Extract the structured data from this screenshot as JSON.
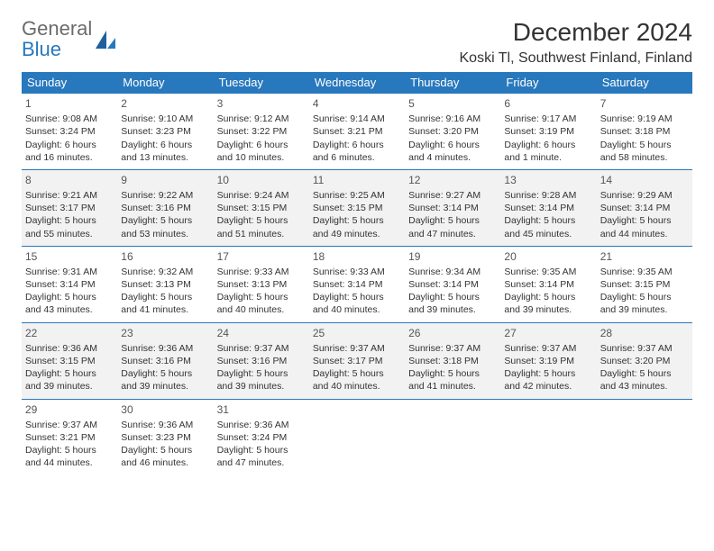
{
  "logo": {
    "line1": "General",
    "line2": "Blue"
  },
  "title": "December 2024",
  "location": "Koski Tl, Southwest Finland, Finland",
  "colors": {
    "header_bg": "#2878bd",
    "header_text": "#ffffff",
    "alt_row_bg": "#f2f2f2",
    "text": "#333333",
    "rule": "#2878bd"
  },
  "dayHeaders": [
    "Sunday",
    "Monday",
    "Tuesday",
    "Wednesday",
    "Thursday",
    "Friday",
    "Saturday"
  ],
  "weeks": [
    {
      "alt": false,
      "days": [
        {
          "num": "1",
          "sunrise": "Sunrise: 9:08 AM",
          "sunset": "Sunset: 3:24 PM",
          "daylight": "Daylight: 6 hours and 16 minutes."
        },
        {
          "num": "2",
          "sunrise": "Sunrise: 9:10 AM",
          "sunset": "Sunset: 3:23 PM",
          "daylight": "Daylight: 6 hours and 13 minutes."
        },
        {
          "num": "3",
          "sunrise": "Sunrise: 9:12 AM",
          "sunset": "Sunset: 3:22 PM",
          "daylight": "Daylight: 6 hours and 10 minutes."
        },
        {
          "num": "4",
          "sunrise": "Sunrise: 9:14 AM",
          "sunset": "Sunset: 3:21 PM",
          "daylight": "Daylight: 6 hours and 6 minutes."
        },
        {
          "num": "5",
          "sunrise": "Sunrise: 9:16 AM",
          "sunset": "Sunset: 3:20 PM",
          "daylight": "Daylight: 6 hours and 4 minutes."
        },
        {
          "num": "6",
          "sunrise": "Sunrise: 9:17 AM",
          "sunset": "Sunset: 3:19 PM",
          "daylight": "Daylight: 6 hours and 1 minute."
        },
        {
          "num": "7",
          "sunrise": "Sunrise: 9:19 AM",
          "sunset": "Sunset: 3:18 PM",
          "daylight": "Daylight: 5 hours and 58 minutes."
        }
      ]
    },
    {
      "alt": true,
      "days": [
        {
          "num": "8",
          "sunrise": "Sunrise: 9:21 AM",
          "sunset": "Sunset: 3:17 PM",
          "daylight": "Daylight: 5 hours and 55 minutes."
        },
        {
          "num": "9",
          "sunrise": "Sunrise: 9:22 AM",
          "sunset": "Sunset: 3:16 PM",
          "daylight": "Daylight: 5 hours and 53 minutes."
        },
        {
          "num": "10",
          "sunrise": "Sunrise: 9:24 AM",
          "sunset": "Sunset: 3:15 PM",
          "daylight": "Daylight: 5 hours and 51 minutes."
        },
        {
          "num": "11",
          "sunrise": "Sunrise: 9:25 AM",
          "sunset": "Sunset: 3:15 PM",
          "daylight": "Daylight: 5 hours and 49 minutes."
        },
        {
          "num": "12",
          "sunrise": "Sunrise: 9:27 AM",
          "sunset": "Sunset: 3:14 PM",
          "daylight": "Daylight: 5 hours and 47 minutes."
        },
        {
          "num": "13",
          "sunrise": "Sunrise: 9:28 AM",
          "sunset": "Sunset: 3:14 PM",
          "daylight": "Daylight: 5 hours and 45 minutes."
        },
        {
          "num": "14",
          "sunrise": "Sunrise: 9:29 AM",
          "sunset": "Sunset: 3:14 PM",
          "daylight": "Daylight: 5 hours and 44 minutes."
        }
      ]
    },
    {
      "alt": false,
      "days": [
        {
          "num": "15",
          "sunrise": "Sunrise: 9:31 AM",
          "sunset": "Sunset: 3:14 PM",
          "daylight": "Daylight: 5 hours and 43 minutes."
        },
        {
          "num": "16",
          "sunrise": "Sunrise: 9:32 AM",
          "sunset": "Sunset: 3:13 PM",
          "daylight": "Daylight: 5 hours and 41 minutes."
        },
        {
          "num": "17",
          "sunrise": "Sunrise: 9:33 AM",
          "sunset": "Sunset: 3:13 PM",
          "daylight": "Daylight: 5 hours and 40 minutes."
        },
        {
          "num": "18",
          "sunrise": "Sunrise: 9:33 AM",
          "sunset": "Sunset: 3:14 PM",
          "daylight": "Daylight: 5 hours and 40 minutes."
        },
        {
          "num": "19",
          "sunrise": "Sunrise: 9:34 AM",
          "sunset": "Sunset: 3:14 PM",
          "daylight": "Daylight: 5 hours and 39 minutes."
        },
        {
          "num": "20",
          "sunrise": "Sunrise: 9:35 AM",
          "sunset": "Sunset: 3:14 PM",
          "daylight": "Daylight: 5 hours and 39 minutes."
        },
        {
          "num": "21",
          "sunrise": "Sunrise: 9:35 AM",
          "sunset": "Sunset: 3:15 PM",
          "daylight": "Daylight: 5 hours and 39 minutes."
        }
      ]
    },
    {
      "alt": true,
      "days": [
        {
          "num": "22",
          "sunrise": "Sunrise: 9:36 AM",
          "sunset": "Sunset: 3:15 PM",
          "daylight": "Daylight: 5 hours and 39 minutes."
        },
        {
          "num": "23",
          "sunrise": "Sunrise: 9:36 AM",
          "sunset": "Sunset: 3:16 PM",
          "daylight": "Daylight: 5 hours and 39 minutes."
        },
        {
          "num": "24",
          "sunrise": "Sunrise: 9:37 AM",
          "sunset": "Sunset: 3:16 PM",
          "daylight": "Daylight: 5 hours and 39 minutes."
        },
        {
          "num": "25",
          "sunrise": "Sunrise: 9:37 AM",
          "sunset": "Sunset: 3:17 PM",
          "daylight": "Daylight: 5 hours and 40 minutes."
        },
        {
          "num": "26",
          "sunrise": "Sunrise: 9:37 AM",
          "sunset": "Sunset: 3:18 PM",
          "daylight": "Daylight: 5 hours and 41 minutes."
        },
        {
          "num": "27",
          "sunrise": "Sunrise: 9:37 AM",
          "sunset": "Sunset: 3:19 PM",
          "daylight": "Daylight: 5 hours and 42 minutes."
        },
        {
          "num": "28",
          "sunrise": "Sunrise: 9:37 AM",
          "sunset": "Sunset: 3:20 PM",
          "daylight": "Daylight: 5 hours and 43 minutes."
        }
      ]
    },
    {
      "alt": false,
      "days": [
        {
          "num": "29",
          "sunrise": "Sunrise: 9:37 AM",
          "sunset": "Sunset: 3:21 PM",
          "daylight": "Daylight: 5 hours and 44 minutes."
        },
        {
          "num": "30",
          "sunrise": "Sunrise: 9:36 AM",
          "sunset": "Sunset: 3:23 PM",
          "daylight": "Daylight: 5 hours and 46 minutes."
        },
        {
          "num": "31",
          "sunrise": "Sunrise: 9:36 AM",
          "sunset": "Sunset: 3:24 PM",
          "daylight": "Daylight: 5 hours and 47 minutes."
        },
        null,
        null,
        null,
        null
      ]
    }
  ]
}
